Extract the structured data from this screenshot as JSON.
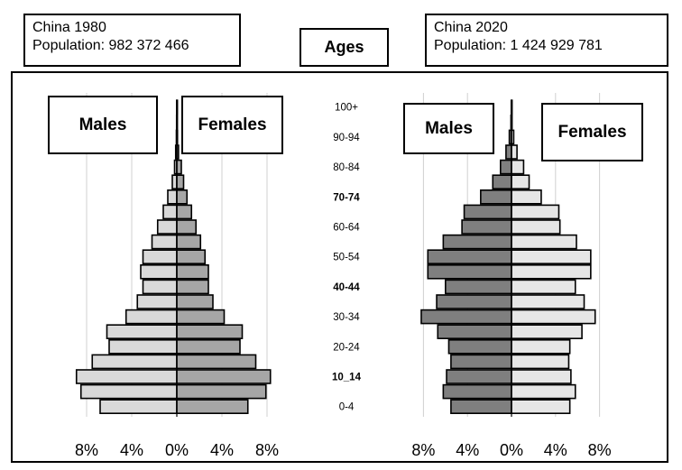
{
  "header": {
    "left": {
      "line1": "China 1980",
      "line2": "Population: 982 372 466"
    },
    "ages": "Ages",
    "right": {
      "line1": "China 2020",
      "line2": "Population: 1 424 929 781"
    }
  },
  "colors": {
    "light": "#d9d9d9",
    "mid": "#a6a6a6",
    "dark": "#7f7f7f",
    "lighter": "#e6e6e6",
    "grid": "#d0d0d0"
  },
  "chart_data": [
    {
      "type": "bar",
      "title": "China 1980",
      "subtitle": "Population: 982 372 466",
      "ylabel": "Ages",
      "categories": [
        "0-4",
        "5-9",
        "10_14",
        "15-19",
        "20-24",
        "25-29",
        "30-34",
        "35-39",
        "40-44",
        "45-49",
        "50-54",
        "55-59",
        "60-64",
        "65-69",
        "70-74",
        "75-79",
        "80-84",
        "85-89",
        "90-94",
        "95-99",
        "100+"
      ],
      "category_labels_shown": [
        "0-4",
        "10_14",
        "20-24",
        "30-34",
        "40-44",
        "50-54",
        "60-64",
        "70-74",
        "80-84",
        "90-94",
        "100+"
      ],
      "xticks": [
        "8%",
        "4%",
        "0%",
        "4%",
        "8%"
      ],
      "xlim": [
        -10,
        10
      ],
      "series": [
        {
          "name": "Males",
          "values": [
            -6.8,
            -8.5,
            -8.9,
            -7.5,
            -6.0,
            -6.2,
            -4.5,
            -3.5,
            -3.0,
            -3.2,
            -3.0,
            -2.2,
            -1.7,
            -1.2,
            -0.8,
            -0.4,
            -0.2,
            -0.1,
            -0.04,
            -0.02,
            -0.01
          ]
        },
        {
          "name": "Females",
          "values": [
            6.3,
            7.9,
            8.3,
            7.0,
            5.6,
            5.8,
            4.2,
            3.2,
            2.8,
            2.8,
            2.5,
            2.1,
            1.7,
            1.3,
            0.9,
            0.6,
            0.4,
            0.15,
            0.06,
            0.03,
            0.01
          ]
        }
      ]
    },
    {
      "type": "bar",
      "title": "China 2020",
      "subtitle": "Population: 1 424 929 781",
      "ylabel": "Ages",
      "categories": [
        "0-4",
        "5-9",
        "10_14",
        "15-19",
        "20-24",
        "25-29",
        "30-34",
        "35-39",
        "40-44",
        "45-49",
        "50-54",
        "55-59",
        "60-64",
        "65-69",
        "70-74",
        "75-79",
        "80-84",
        "85-89",
        "90-94",
        "95-99",
        "100+"
      ],
      "category_labels_shown": [
        "0-4",
        "10_14",
        "20-24",
        "30-34",
        "40-44",
        "50-54",
        "60-64",
        "70-74",
        "80-84",
        "90-94",
        "100+"
      ],
      "xticks": [
        "8%",
        "4%",
        "0%",
        "4%",
        "8%"
      ],
      "xlim": [
        -10,
        10
      ],
      "series": [
        {
          "name": "Males",
          "values": [
            -5.5,
            -6.2,
            -5.9,
            -5.5,
            -5.7,
            -6.7,
            -8.2,
            -6.8,
            -6.0,
            -7.6,
            -7.6,
            -6.2,
            -4.5,
            -4.3,
            -2.8,
            -1.7,
            -1.0,
            -0.5,
            -0.2,
            -0.05,
            -0.02
          ]
        },
        {
          "name": "Females",
          "values": [
            5.3,
            5.8,
            5.4,
            5.2,
            5.3,
            6.4,
            7.6,
            6.6,
            5.8,
            7.2,
            7.2,
            5.9,
            4.4,
            4.3,
            2.7,
            1.6,
            1.1,
            0.5,
            0.2,
            0.05,
            0.02
          ]
        }
      ]
    }
  ]
}
